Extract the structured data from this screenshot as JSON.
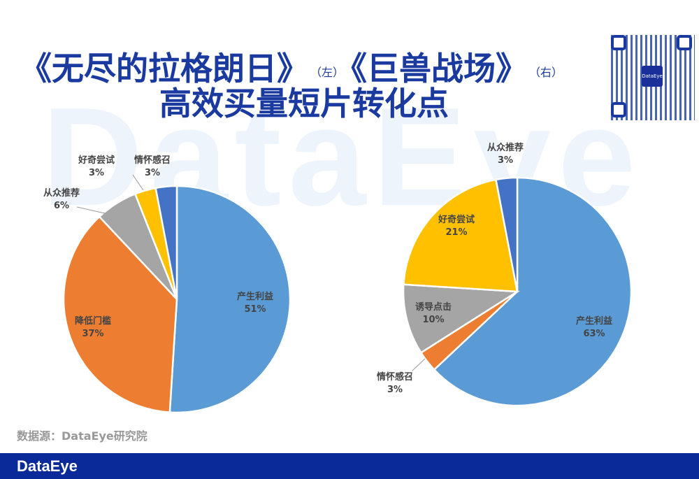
{
  "watermark": "DataEye",
  "title": {
    "line1_left": "《无尽的拉格朗日》",
    "left_tag": "（左）",
    "line1_right": "《巨兽战场》",
    "right_tag": "（右）",
    "line2": "高效买量短片转化点"
  },
  "qr_label": "DataEye",
  "colors": {
    "产生利益": "#5B9BD5",
    "降低门槛": "#ED7D31",
    "情怀感召_right": "#ED7D31",
    "从众推荐_left": "#A5A5A5",
    "诱导点击": "#A5A5A5",
    "好奇尝试": "#FFC000",
    "dark": "#4472C4"
  },
  "chart_data": [
    {
      "type": "pie",
      "title": "《无尽的拉格朗日》",
      "slices": [
        {
          "label": "产生利益",
          "value": 51,
          "pct": "51%",
          "color": "#5B9BD5"
        },
        {
          "label": "降低门槛",
          "value": 37,
          "pct": "37%",
          "color": "#ED7D31"
        },
        {
          "label": "从众推荐",
          "value": 6,
          "pct": "6%",
          "color": "#A5A5A5"
        },
        {
          "label": "好奇尝试",
          "value": 3,
          "pct": "3%",
          "color": "#FFC000"
        },
        {
          "label": "情怀感召",
          "value": 3,
          "pct": "3%",
          "color": "#4472C4"
        }
      ]
    },
    {
      "type": "pie",
      "title": "《巨兽战场》",
      "slices": [
        {
          "label": "产生利益",
          "value": 63,
          "pct": "63%",
          "color": "#5B9BD5"
        },
        {
          "label": "情怀感召",
          "value": 3,
          "pct": "3%",
          "color": "#ED7D31"
        },
        {
          "label": "诱导点击",
          "value": 10,
          "pct": "10%",
          "color": "#A5A5A5"
        },
        {
          "label": "好奇尝试",
          "value": 21,
          "pct": "21%",
          "color": "#FFC000"
        },
        {
          "label": "从众推荐",
          "value": 3,
          "pct": "3%",
          "color": "#4472C4"
        }
      ]
    }
  ],
  "source": "数据源：DataEye研究院",
  "footer_logo": "DataEye"
}
